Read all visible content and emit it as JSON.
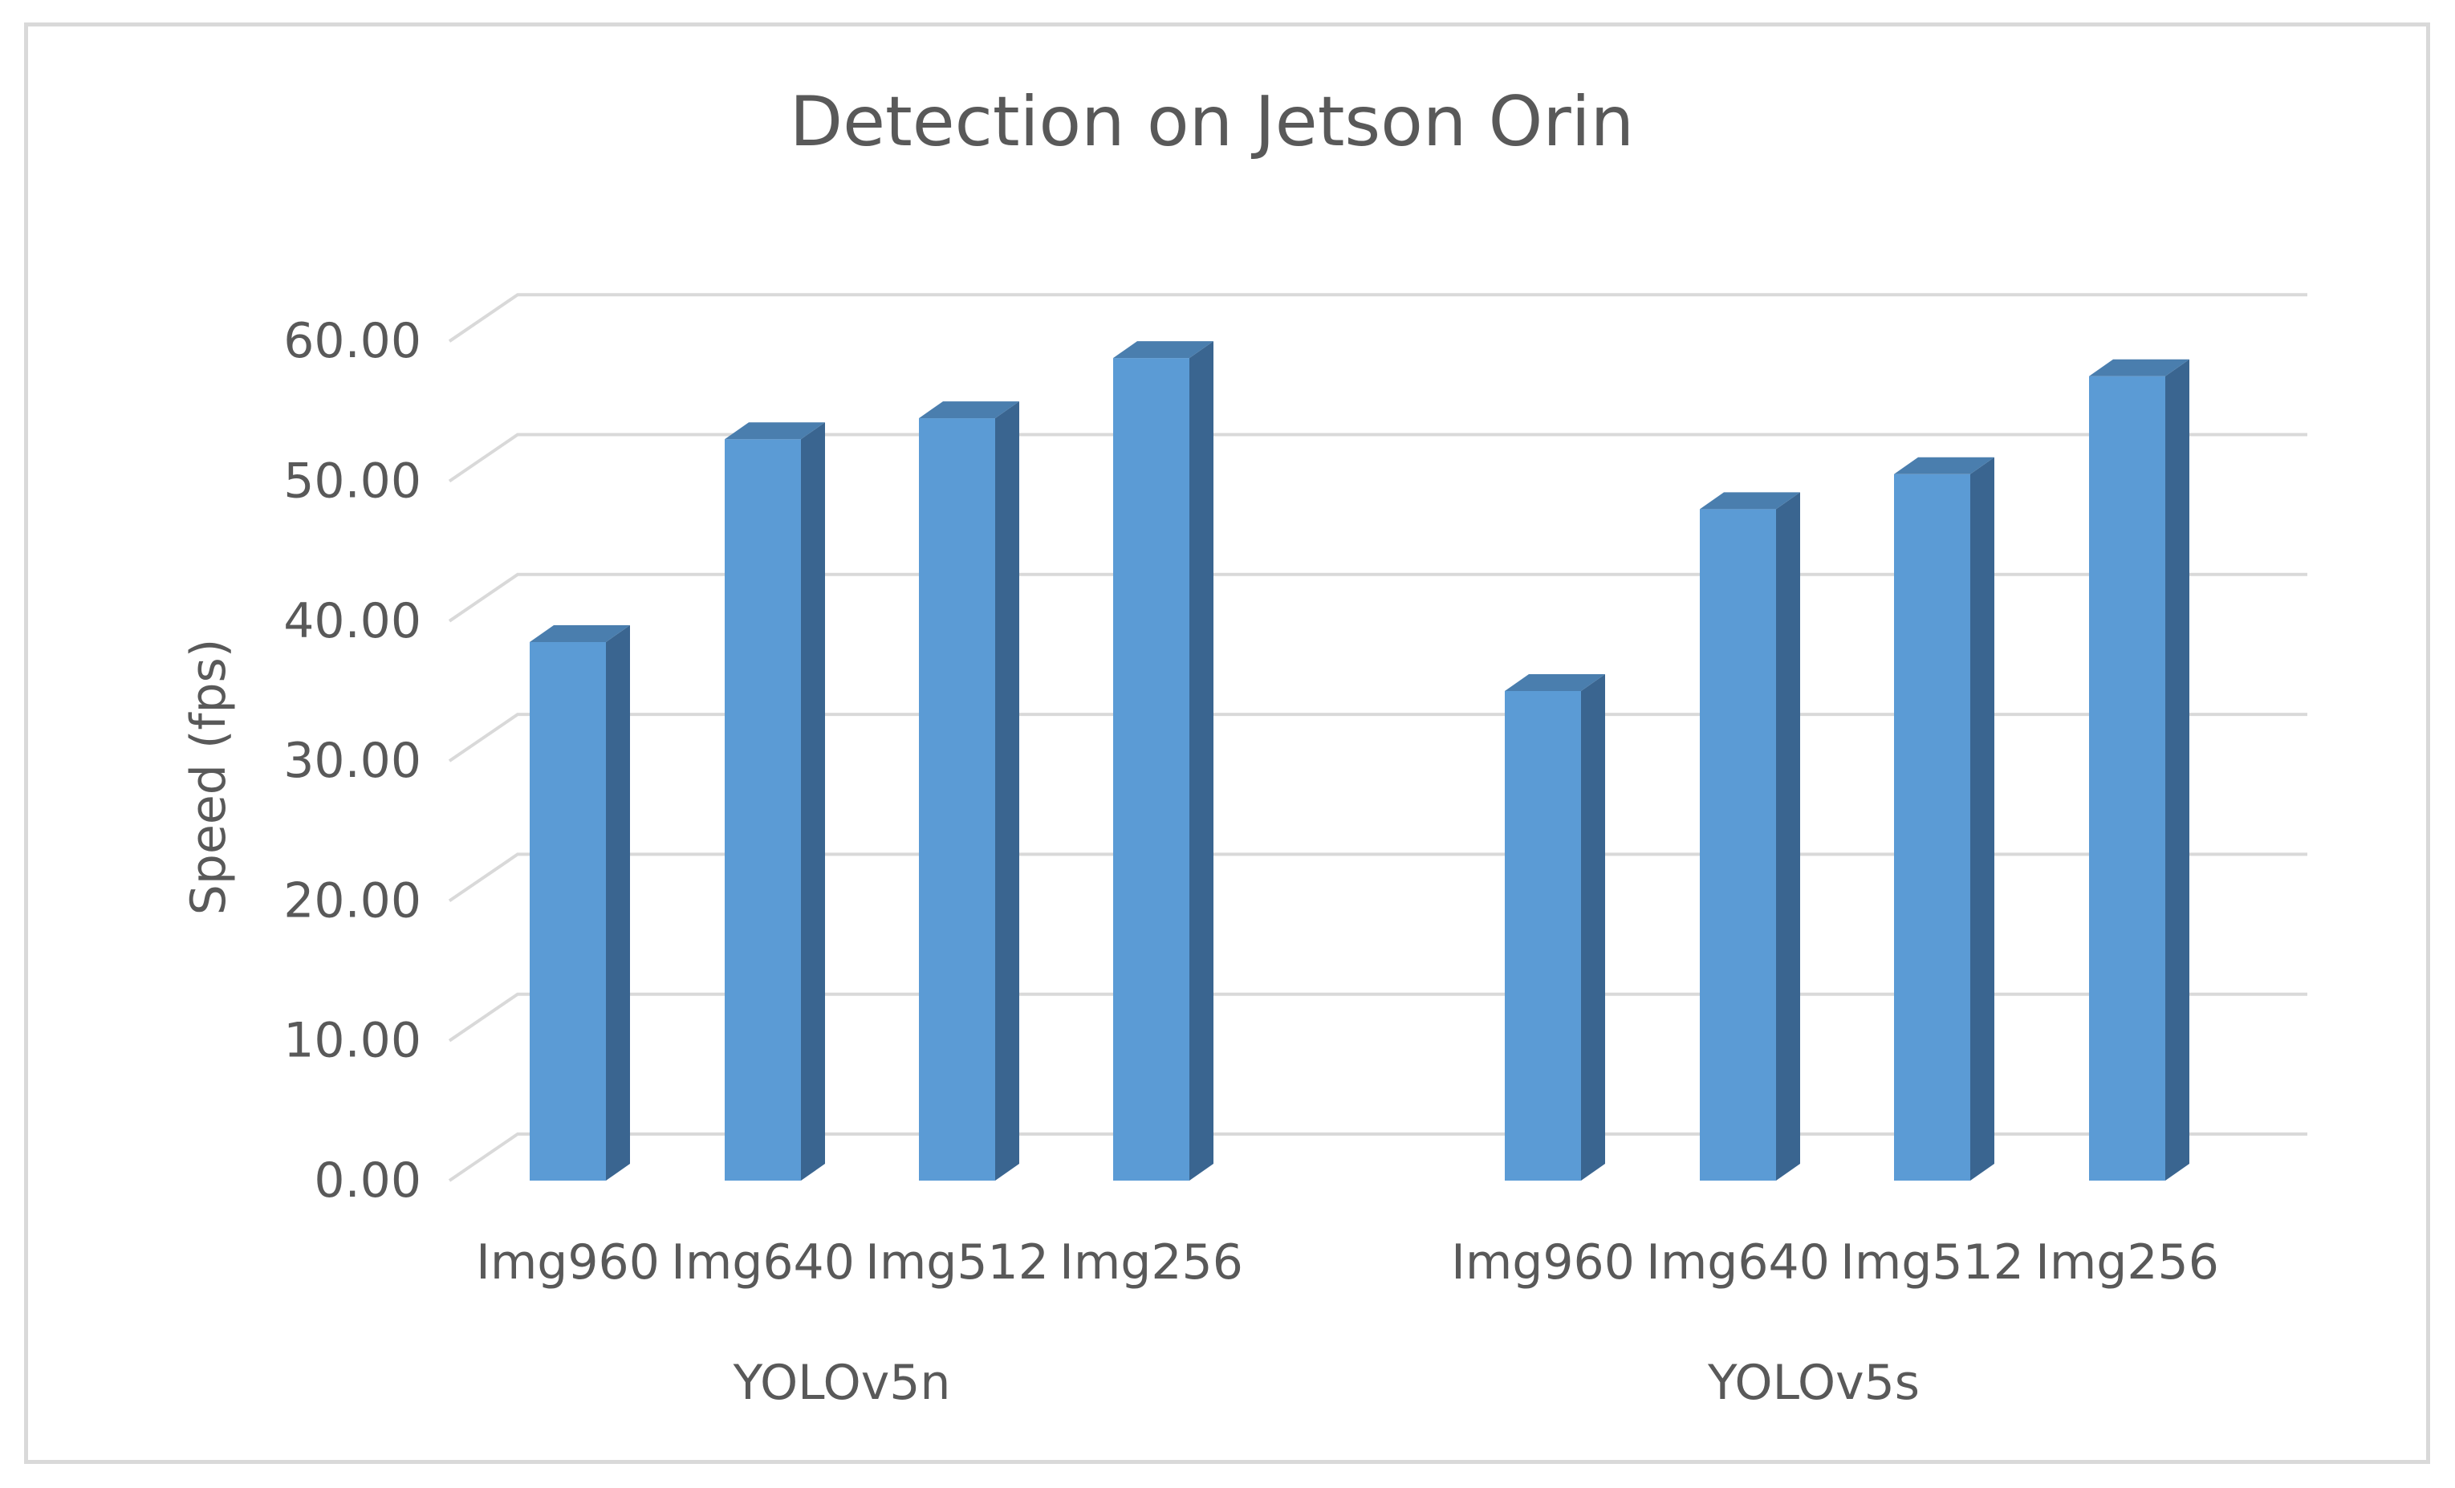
{
  "chart_data": {
    "type": "bar",
    "style": "3d-clustered-column",
    "title": "Detection on Jetson Orin",
    "ylabel": "Speed (fps)",
    "xlabel": "",
    "ylim": [
      0,
      60
    ],
    "yticks": [
      0,
      10,
      20,
      30,
      40,
      50,
      60
    ],
    "ytick_labels": [
      "0.00",
      "10.00",
      "20.00",
      "30.00",
      "40.00",
      "50.00",
      "60.00"
    ],
    "grid": true,
    "legend": "none",
    "groups": [
      {
        "name": "YOLOv5n",
        "categories": [
          "Img960",
          "Img640",
          "Img512",
          "Img256"
        ],
        "values": [
          38.5,
          53.0,
          54.5,
          58.8
        ]
      },
      {
        "name": "YOLOv5s",
        "categories": [
          "Img960",
          "Img640",
          "Img512",
          "Img256"
        ],
        "values": [
          35.0,
          48.0,
          50.5,
          57.5
        ]
      }
    ],
    "colors": {
      "bar_front": "#5b9bd5",
      "bar_side": "#3a6590",
      "bar_top": "#4a7eae",
      "gridline": "#d9d9d9",
      "text": "#595959"
    }
  }
}
